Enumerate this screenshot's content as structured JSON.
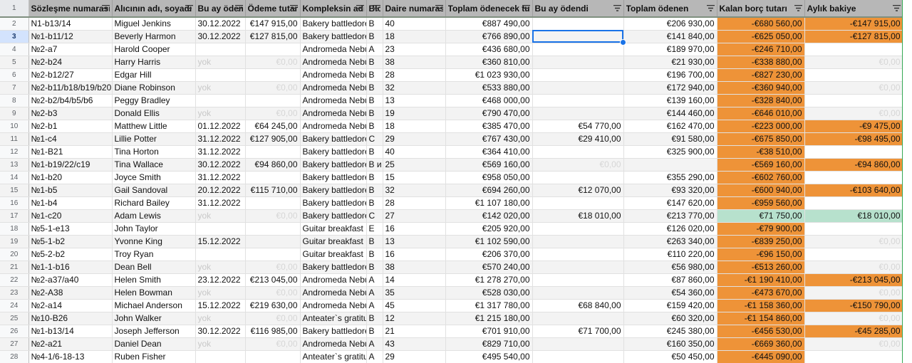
{
  "columns": [
    "Sözleşme numarası",
    "Alıcının adı, soyadı",
    "Bu ay ödeme tarihi",
    "Ödeme tutarı",
    "Kompleksin adı",
    "Blok",
    "Daire numarası",
    "Toplam ödenecek tutar",
    "Bu ay ödendi",
    "Toplam ödenen",
    "Kalan borç tutarı",
    "Aylık bakiye"
  ],
  "header_row_number": "1",
  "rows": [
    {
      "n": "2",
      "c": [
        "N1-b13/14",
        "Miguel Jenkins",
        "30.12.2022",
        "€147 915,00",
        "Bakery battledore",
        "B",
        "40",
        "€887 490,00",
        "",
        "€206 930,00",
        "-€680 560,00",
        "-€147 915,00"
      ]
    },
    {
      "n": "3",
      "c": [
        "№1-b11/12",
        "Beverly Harmon",
        "30.12.2022",
        "€127 815,00",
        "Bakery battledore",
        "B",
        "18",
        "€766 890,00",
        "",
        "€141 840,00",
        "-€625 050,00",
        "-€127 815,00"
      ]
    },
    {
      "n": "4",
      "c": [
        "№2-a7",
        "Harold Cooper",
        "",
        "",
        "Andromeda Nebula",
        "A",
        "23",
        "€436 680,00",
        "",
        "€189 970,00",
        "-€246 710,00",
        ""
      ]
    },
    {
      "n": "5",
      "c": [
        "№2-b24",
        "Harry Harris",
        "yok",
        "€0,00",
        "Andromeda Nebula",
        "B",
        "38",
        "€360 810,00",
        "",
        "€21 930,00",
        "-€338 880,00",
        "€0,00"
      ]
    },
    {
      "n": "6",
      "c": [
        "№2-b12/27",
        "Edgar Hill",
        "",
        "",
        "Andromeda Nebula",
        "B",
        "28",
        "€1 023 930,00",
        "",
        "€196 700,00",
        "-€827 230,00",
        ""
      ]
    },
    {
      "n": "7",
      "c": [
        "№2-b11/b18/b19/b20",
        "Diane Robinson",
        "yok",
        "€0,00",
        "Andromeda Nebula",
        "B",
        "32",
        "€533 880,00",
        "",
        "€172 940,00",
        "-€360 940,00",
        "€0,00"
      ]
    },
    {
      "n": "8",
      "c": [
        "№2-b2/b4/b5/b6",
        "Peggy Bradley",
        "",
        "",
        "Andromeda Nebula",
        "B",
        "13",
        "€468 000,00",
        "",
        "€139 160,00",
        "-€328 840,00",
        ""
      ]
    },
    {
      "n": "9",
      "c": [
        "№2-b3",
        "Donald Ellis",
        "yok",
        "€0,00",
        "Andromeda Nebula",
        "B",
        "19",
        "€790 470,00",
        "",
        "€144 460,00",
        "-€646 010,00",
        "€0,00"
      ]
    },
    {
      "n": "10",
      "c": [
        "№2-b1",
        "Matthew Little",
        "01.12.2022",
        "€64 245,00",
        "Andromeda Nebula",
        "B",
        "18",
        "€385 470,00",
        "€54 770,00",
        "€162 470,00",
        "-€223 000,00",
        "-€9 475,00"
      ]
    },
    {
      "n": "11",
      "c": [
        "№1-c4",
        "Lillie Potter",
        "31.12.2022",
        "€127 905,00",
        "Bakery battledore",
        "C",
        "29",
        "€767 430,00",
        "€29 410,00",
        "€91 580,00",
        "-€675 850,00",
        "-€98 495,00"
      ]
    },
    {
      "n": "12",
      "c": [
        "№1-B21",
        "Tina Horton",
        "31.12.2022",
        "",
        "Bakery battledore",
        "B",
        "40",
        "€364 410,00",
        "",
        "€325 900,00",
        "-€38 510,00",
        ""
      ]
    },
    {
      "n": "13",
      "c": [
        "№1-b19/22/c19",
        "Tina Wallace",
        "30.12.2022",
        "€94 860,00",
        "Bakery battledore",
        "B и",
        "25",
        "€569 160,00",
        "€0,00",
        "",
        "-€569 160,00",
        "-€94 860,00"
      ]
    },
    {
      "n": "14",
      "c": [
        "№1-b20",
        "Joyce Smith",
        "31.12.2022",
        "",
        "Bakery battledore",
        "B",
        "15",
        "€958 050,00",
        "",
        "€355 290,00",
        "-€602 760,00",
        ""
      ]
    },
    {
      "n": "15",
      "c": [
        "№1-b5",
        "Gail Sandoval",
        "20.12.2022",
        "€115 710,00",
        "Bakery battledore",
        "B",
        "32",
        "€694 260,00",
        "€12 070,00",
        "€93 320,00",
        "-€600 940,00",
        "-€103 640,00"
      ]
    },
    {
      "n": "16",
      "c": [
        "№1-b4",
        "Richard Bailey",
        "31.12.2022",
        "",
        "Bakery battledore",
        "B",
        "28",
        "€1 107 180,00",
        "",
        "€147 620,00",
        "-€959 560,00",
        ""
      ]
    },
    {
      "n": "17",
      "c": [
        "№1-c20",
        "Adam Lewis",
        "yok",
        "€0,00",
        "Bakery battledore",
        "C",
        "27",
        "€142 020,00",
        "€18 010,00",
        "€213 770,00",
        "€71 750,00",
        "€18 010,00"
      ]
    },
    {
      "n": "18",
      "c": [
        "№5-1-e13",
        "John Taylor",
        "",
        "",
        "Guitar breakfast",
        "E",
        "16",
        "€205 920,00",
        "",
        "€126 020,00",
        "-€79 900,00",
        ""
      ]
    },
    {
      "n": "19",
      "c": [
        "№5-1-b2",
        "Yvonne King",
        "15.12.2022",
        "",
        "Guitar breakfast",
        "B",
        "13",
        "€1 102 590,00",
        "",
        "€263 340,00",
        "-€839 250,00",
        "€0,00"
      ]
    },
    {
      "n": "20",
      "c": [
        "№5-2-b2",
        "Troy Ryan",
        "",
        "",
        "Guitar breakfast",
        "B",
        "16",
        "€206 370,00",
        "",
        "€110 220,00",
        "-€96 150,00",
        ""
      ]
    },
    {
      "n": "21",
      "c": [
        "№1-1-b16",
        "Dean Bell",
        "yok",
        "€0,00",
        "Bakery battledore",
        "B",
        "38",
        "€570 240,00",
        "",
        "€56 980,00",
        "-€513 260,00",
        "€0,00"
      ]
    },
    {
      "n": "22",
      "c": [
        "№2-a37/a40",
        "Helen Smith",
        "23.12.2022",
        "€213 045,00",
        "Andromeda Nebula",
        "A",
        "14",
        "€1 278 270,00",
        "",
        "€87 860,00",
        "-€1 190 410,00",
        "-€213 045,00"
      ]
    },
    {
      "n": "23",
      "c": [
        "№2-A38",
        "Helen Bowman",
        "yok",
        "€0,00",
        "Andromeda Nebula",
        "A",
        "35",
        "€528 030,00",
        "",
        "€54 360,00",
        "-€473 670,00",
        "€0,00"
      ]
    },
    {
      "n": "24",
      "c": [
        "№2-a14",
        "Michael Anderson",
        "15.12.2022",
        "€219 630,00",
        "Andromeda Nebula",
        "A",
        "45",
        "€1 317 780,00",
        "€68 840,00",
        "€159 420,00",
        "-€1 158 360,00",
        "-€150 790,00"
      ]
    },
    {
      "n": "25",
      "c": [
        "№10-B26",
        "John Walker",
        "yok",
        "€0,00",
        "Anteater`s gratitude",
        "B",
        "12",
        "€1 215 180,00",
        "",
        "€60 320,00",
        "-€1 154 860,00",
        "€0,00"
      ]
    },
    {
      "n": "26",
      "c": [
        "№1-b13/14",
        "Joseph Jefferson",
        "30.12.2022",
        "€116 985,00",
        "Bakery battledore",
        "B",
        "21",
        "€701 910,00",
        "€71 700,00",
        "€245 380,00",
        "-€456 530,00",
        "-€45 285,00"
      ]
    },
    {
      "n": "27",
      "c": [
        "№2-a21",
        "Daniel Dean",
        "yok",
        "€0,00",
        "Andromeda Nebula",
        "A",
        "43",
        "€829 710,00",
        "",
        "€160 350,00",
        "-€669 360,00",
        "€0,00"
      ]
    },
    {
      "n": "28",
      "c": [
        "№4-1/6-18-13",
        "Ruben Fisher",
        "",
        "",
        "Anteater`s gratitude",
        "A",
        "29",
        "€495 540,00",
        "",
        "€50 450,00",
        "-€445 090,00",
        ""
      ]
    }
  ],
  "colors": {
    "header_bg": "#b7b7b7",
    "debt_orange": "#ee9338",
    "positive_green": "#b7e1cd",
    "selection_blue": "#1a73e8",
    "band_gray": "#f3f3f3"
  },
  "icons": {
    "filter": "filter-funnel-icon"
  }
}
